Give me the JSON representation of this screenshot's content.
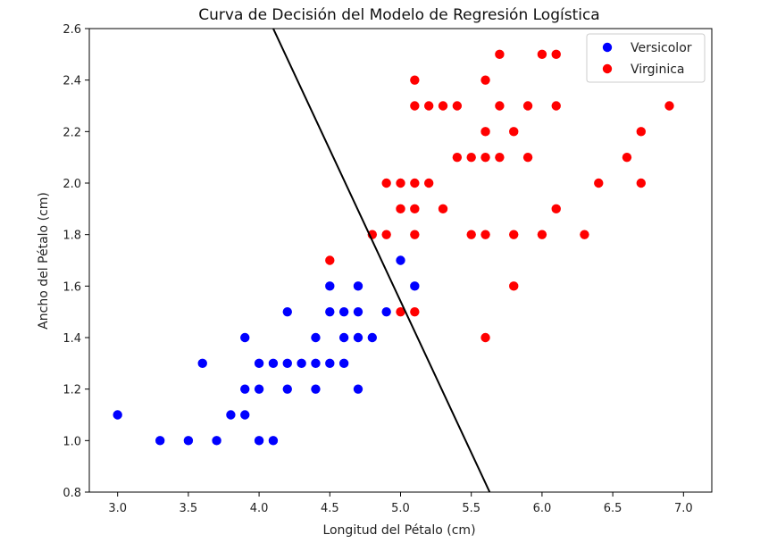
{
  "chart_data": {
    "type": "scatter",
    "title": "Curva de Decisión del Modelo de Regresión Logística",
    "xlabel": "Longitud del Pétalo (cm)",
    "ylabel": "Ancho del Pétalo (cm)",
    "xlim": [
      2.8,
      7.2
    ],
    "ylim": [
      0.8,
      2.6
    ],
    "xticks": [
      "3.0",
      "3.5",
      "4.0",
      "4.5",
      "5.0",
      "5.5",
      "6.0",
      "6.5",
      "7.0"
    ],
    "yticks": [
      "0.8",
      "1.0",
      "1.2",
      "1.4",
      "1.6",
      "1.8",
      "2.0",
      "2.2",
      "2.4",
      "2.6"
    ],
    "legend_position": "top-right",
    "series": [
      {
        "name": "Versicolor",
        "color": "#0000ff",
        "points": [
          [
            3.0,
            1.1
          ],
          [
            3.3,
            1.0
          ],
          [
            3.5,
            1.0
          ],
          [
            3.7,
            1.0
          ],
          [
            3.6,
            1.3
          ],
          [
            3.8,
            1.1
          ],
          [
            3.9,
            1.1
          ],
          [
            3.9,
            1.2
          ],
          [
            3.9,
            1.4
          ],
          [
            4.0,
            1.0
          ],
          [
            4.1,
            1.0
          ],
          [
            4.0,
            1.2
          ],
          [
            4.0,
            1.3
          ],
          [
            4.1,
            1.3
          ],
          [
            4.2,
            1.2
          ],
          [
            4.2,
            1.3
          ],
          [
            4.3,
            1.3
          ],
          [
            4.2,
            1.5
          ],
          [
            4.4,
            1.2
          ],
          [
            4.4,
            1.3
          ],
          [
            4.4,
            1.4
          ],
          [
            4.5,
            1.3
          ],
          [
            4.5,
            1.5
          ],
          [
            4.5,
            1.6
          ],
          [
            4.6,
            1.3
          ],
          [
            4.6,
            1.4
          ],
          [
            4.6,
            1.5
          ],
          [
            4.7,
            1.2
          ],
          [
            4.7,
            1.4
          ],
          [
            4.7,
            1.5
          ],
          [
            4.7,
            1.6
          ],
          [
            4.8,
            1.4
          ],
          [
            4.9,
            1.5
          ],
          [
            5.0,
            1.7
          ],
          [
            5.1,
            1.6
          ]
        ]
      },
      {
        "name": "Virginica",
        "color": "#ff0000",
        "points": [
          [
            4.5,
            1.7
          ],
          [
            4.8,
            1.8
          ],
          [
            4.9,
            1.8
          ],
          [
            4.9,
            2.0
          ],
          [
            5.0,
            1.5
          ],
          [
            5.0,
            1.9
          ],
          [
            5.0,
            2.0
          ],
          [
            5.1,
            1.5
          ],
          [
            5.1,
            1.8
          ],
          [
            5.1,
            1.9
          ],
          [
            5.1,
            2.0
          ],
          [
            5.1,
            2.3
          ],
          [
            5.1,
            2.4
          ],
          [
            5.2,
            2.0
          ],
          [
            5.2,
            2.3
          ],
          [
            5.3,
            1.9
          ],
          [
            5.3,
            2.3
          ],
          [
            5.4,
            2.1
          ],
          [
            5.4,
            2.3
          ],
          [
            5.5,
            1.8
          ],
          [
            5.5,
            2.1
          ],
          [
            5.6,
            1.4
          ],
          [
            5.6,
            1.8
          ],
          [
            5.6,
            2.1
          ],
          [
            5.6,
            2.2
          ],
          [
            5.6,
            2.4
          ],
          [
            5.7,
            2.1
          ],
          [
            5.7,
            2.3
          ],
          [
            5.7,
            2.5
          ],
          [
            5.8,
            1.6
          ],
          [
            5.8,
            1.8
          ],
          [
            5.8,
            2.2
          ],
          [
            5.9,
            2.1
          ],
          [
            5.9,
            2.3
          ],
          [
            6.0,
            1.8
          ],
          [
            6.0,
            2.5
          ],
          [
            6.1,
            1.9
          ],
          [
            6.1,
            2.3
          ],
          [
            6.1,
            2.5
          ],
          [
            6.3,
            1.8
          ],
          [
            6.4,
            2.0
          ],
          [
            6.6,
            2.1
          ],
          [
            6.7,
            2.0
          ],
          [
            6.7,
            2.2
          ],
          [
            6.9,
            2.3
          ]
        ]
      }
    ],
    "decision_boundary": {
      "name": "decision-boundary",
      "color": "#000000",
      "points": [
        [
          4.1,
          2.6
        ],
        [
          5.63,
          0.8
        ]
      ]
    }
  }
}
